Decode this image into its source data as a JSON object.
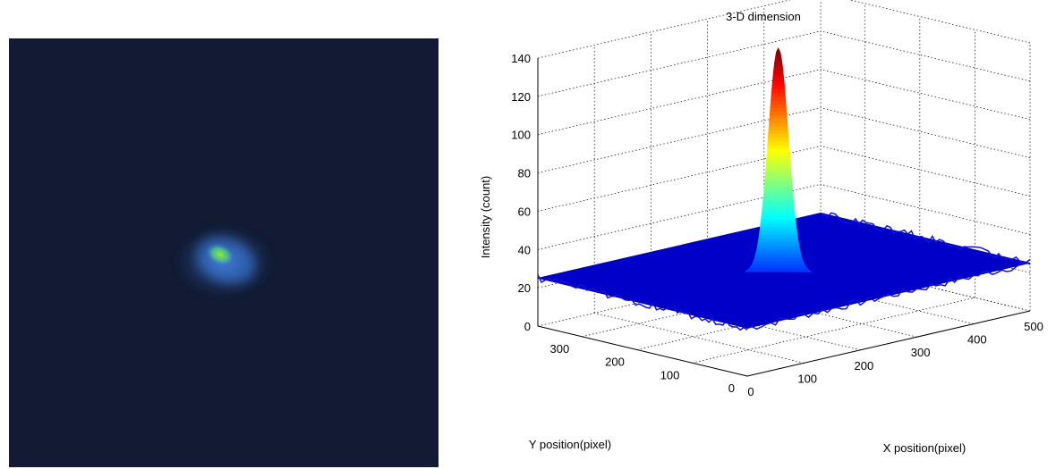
{
  "beam_image": {
    "background": "#121b33",
    "spot_glow": "#3a78d8",
    "spot_core": "#7be03a"
  },
  "chart_data": {
    "type": "surface",
    "title": "3-D dimension",
    "xlabel": "X position(pixel)",
    "ylabel": "Y position(pixel)",
    "zlabel": "Intensity (count)",
    "xlim": [
      0,
      500
    ],
    "ylim": [
      0,
      380
    ],
    "zlim": [
      0,
      140
    ],
    "x_ticks": [
      "0",
      "100",
      "200",
      "300",
      "400",
      "500"
    ],
    "y_ticks": [
      "0",
      "100",
      "200",
      "300"
    ],
    "z_ticks": [
      "0",
      "20",
      "40",
      "60",
      "80",
      "100",
      "120",
      "140"
    ],
    "grid": true,
    "colormap": "jet",
    "baseline_intensity": 25,
    "peak": {
      "x": 240,
      "y": 190,
      "intensity": 142
    },
    "colors": {
      "floor": "#0000c8",
      "peak": "#c80000"
    }
  }
}
